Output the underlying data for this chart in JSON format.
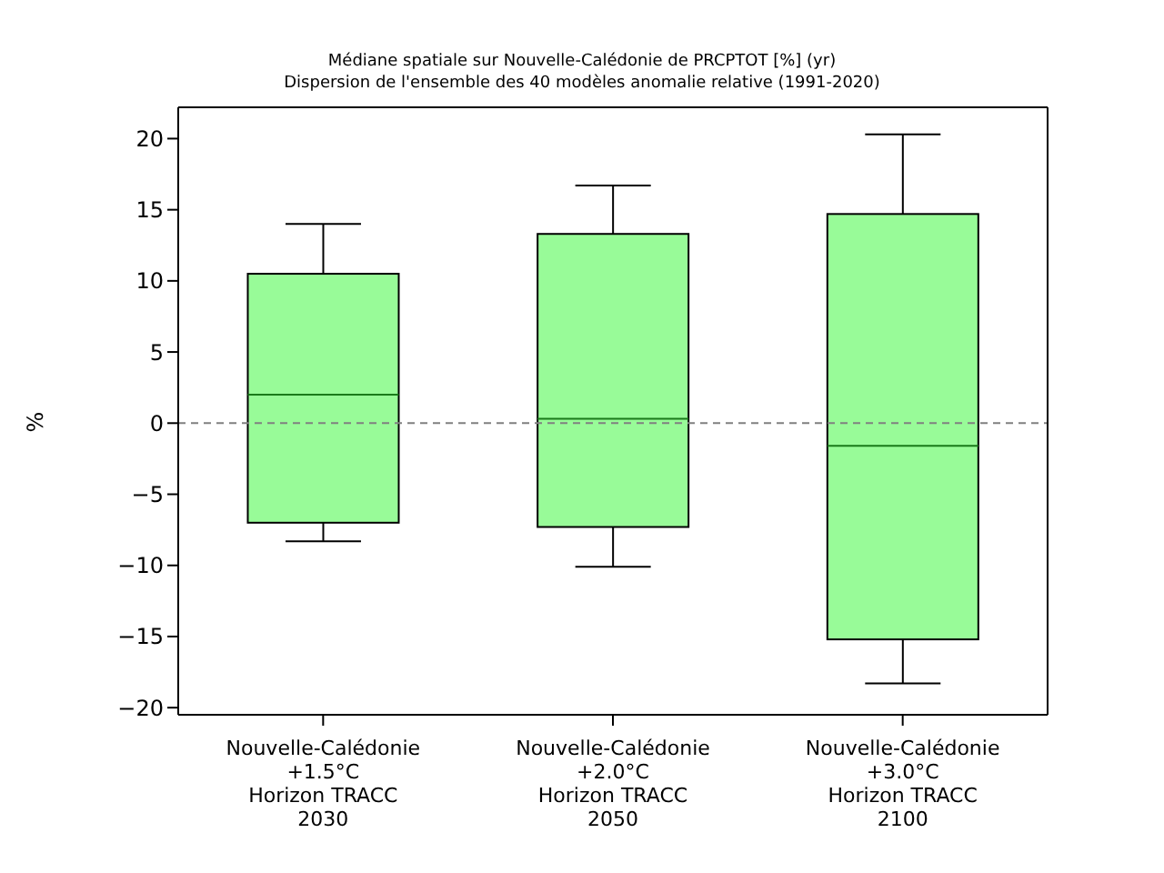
{
  "chart_data": {
    "type": "box",
    "title": "Médiane spatiale sur Nouvelle-Calédonie de PRCPTOT [%] (yr)",
    "subtitle": "Dispersion de l'ensemble des 40 modèles anomalie relative (1991-2020)",
    "ylabel": "%",
    "categories": [
      "Nouvelle-Calédonie\n+1.5°C\nHorizon TRACC\n2030",
      "Nouvelle-Calédonie\n+2.0°C\nHorizon TRACC\n2050",
      "Nouvelle-Calédonie\n+3.0°C\nHorizon TRACC\n2100"
    ],
    "series": [
      {
        "color": "#98fb98",
        "boxes": [
          {
            "low": -8.3,
            "q1": -7.0,
            "median": 2.0,
            "q3": 10.5,
            "high": 14.0
          },
          {
            "low": -10.1,
            "q1": -7.3,
            "median": 0.3,
            "q3": 13.3,
            "high": 16.7
          },
          {
            "low": -18.3,
            "q1": -15.2,
            "median": -1.6,
            "q3": 14.7,
            "high": 20.3
          }
        ]
      }
    ],
    "ylim": [
      -20.5,
      22.2
    ],
    "yticks": [
      -20,
      -15,
      -10,
      -5,
      0,
      5,
      10,
      15,
      20
    ],
    "ref_lines": [
      {
        "axis": "y",
        "value": 0,
        "color": "#808080",
        "line_style": "dashed"
      }
    ],
    "grid": false,
    "legend": false
  }
}
